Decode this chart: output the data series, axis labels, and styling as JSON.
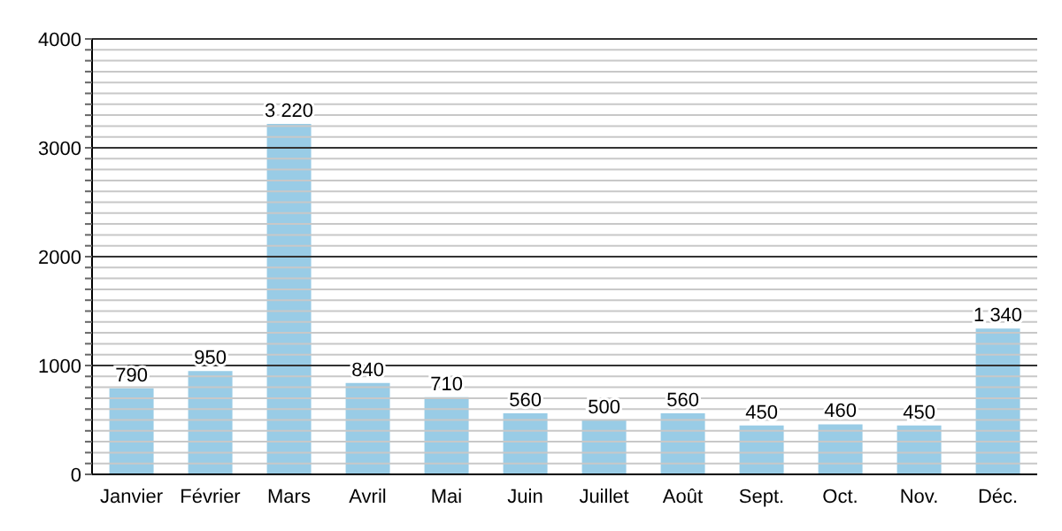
{
  "chart_data": {
    "type": "bar",
    "categories": [
      "Janvier",
      "Février",
      "Mars",
      "Avril",
      "Mai",
      "Juin",
      "Juillet",
      "Août",
      "Sept.",
      "Oct.",
      "Nov.",
      "Déc."
    ],
    "values": [
      790,
      950,
      3220,
      840,
      710,
      560,
      500,
      560,
      450,
      460,
      450,
      1340
    ],
    "value_labels": [
      "790",
      "950",
      "3 220",
      "840",
      "710",
      "560",
      "500",
      "560",
      "450",
      "460",
      "450",
      "1 340"
    ],
    "color": "#99cce6",
    "ylim": [
      0,
      4000
    ],
    "yticks": [
      0,
      {
        "value": 100,
        "label": null
      },
      {
        "value": 200,
        "label": null
      },
      {
        "value": 300,
        "label": null
      },
      {
        "value": 400,
        "label": null
      },
      {
        "value": 500,
        "label": null
      },
      {
        "value": 600,
        "label": null
      },
      {
        "value": 700,
        "label": null
      },
      {
        "value": 800,
        "label": null
      },
      {
        "value": 900,
        "label": null
      },
      1000,
      {
        "value": 1100,
        "label": null
      },
      {
        "value": 1200,
        "label": null
      },
      {
        "value": 1300,
        "label": null
      },
      {
        "value": 1400,
        "label": null
      },
      {
        "value": 1500,
        "label": null
      },
      {
        "value": 1600,
        "label": null
      },
      {
        "value": 1700,
        "label": null
      },
      {
        "value": 1800,
        "label": null
      },
      {
        "value": 1900,
        "label": null
      },
      2000,
      {
        "value": 2100,
        "label": null
      },
      {
        "value": 2200,
        "label": null
      },
      {
        "value": 2300,
        "label": null
      },
      {
        "value": 2400,
        "label": null
      },
      {
        "value": 2500,
        "label": null
      },
      {
        "value": 2600,
        "label": null
      },
      {
        "value": 2700,
        "label": null
      },
      {
        "value": 2800,
        "label": null
      },
      {
        "value": 2900,
        "label": null
      },
      3000,
      {
        "value": 3100,
        "label": null
      },
      {
        "value": 3200,
        "label": null
      },
      {
        "value": 3300,
        "label": null
      },
      {
        "value": 3400,
        "label": null
      },
      {
        "value": 3500,
        "label": null
      },
      {
        "value": 3600,
        "label": null
      },
      {
        "value": 3700,
        "label": null
      },
      {
        "value": 3800,
        "label": null
      },
      {
        "value": 3900,
        "label": null
      },
      4000
    ],
    "grid": "y"
  }
}
